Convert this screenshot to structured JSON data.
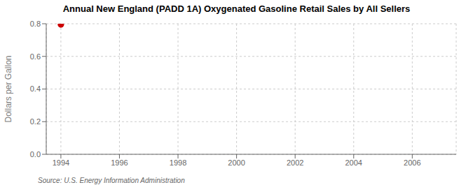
{
  "chart_data": {
    "type": "scatter",
    "title": "Annual New England (PADD 1A) Oxygenated Gasoline Retail Sales by All Sellers",
    "y_label": "Dollars per Gallon",
    "annotation": "Source: U.S. Energy Information Administration",
    "x": [
      1994
    ],
    "values": [
      0.795
    ],
    "color": "#cc0000",
    "xlim": [
      1993.5,
      2007.5
    ],
    "xticks": [
      1994,
      1996,
      1998,
      2000,
      2002,
      2004,
      2006
    ],
    "ylim": [
      0,
      0.8
    ],
    "yticks": [
      {
        "value": 0,
        "label": "0.0"
      },
      0.2,
      0.4,
      0.6,
      0.8
    ],
    "grid": true
  }
}
